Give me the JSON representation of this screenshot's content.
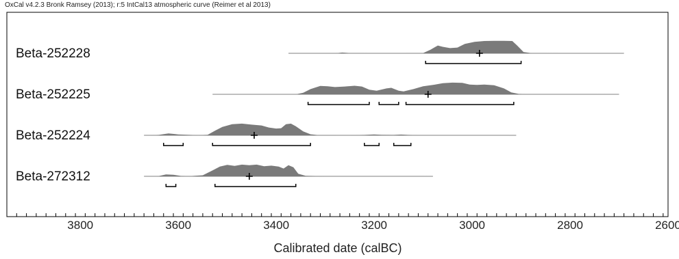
{
  "header": "OxCal v4.2.3 Bronk Ramsey (2013); r:5 IntCal13 atmospheric curve (Reimer et al 2013)",
  "chart_data": {
    "type": "area",
    "xlabel": "Calibrated date (calBC)",
    "xlim": [
      3950,
      2600
    ],
    "x_ticks": [
      3800,
      3600,
      3400,
      3200,
      3000,
      2800,
      2600
    ],
    "minor_tick_step": 20,
    "grid": false,
    "fill_color": "#7a7a7a",
    "series": [
      {
        "name": "Beta-252228",
        "range": [
          3375,
          2690
        ],
        "mean": 2985,
        "profile": [
          [
            3375,
            0
          ],
          [
            3280,
            0
          ],
          [
            3265,
            0.06
          ],
          [
            3250,
            0.02
          ],
          [
            3200,
            0.01
          ],
          [
            3150,
            0.01
          ],
          [
            3100,
            0.02
          ],
          [
            3085,
            0.28
          ],
          [
            3070,
            0.6
          ],
          [
            3060,
            0.5
          ],
          [
            3045,
            0.4
          ],
          [
            3030,
            0.44
          ],
          [
            3015,
            0.72
          ],
          [
            2995,
            0.88
          ],
          [
            2975,
            0.95
          ],
          [
            2955,
            0.96
          ],
          [
            2935,
            0.96
          ],
          [
            2918,
            0.95
          ],
          [
            2908,
            0.6
          ],
          [
            2895,
            0.1
          ],
          [
            2880,
            0.02
          ],
          [
            2800,
            0.01
          ],
          [
            2690,
            0
          ]
        ],
        "ranges_1sigma": [
          [
            3095,
            2900
          ]
        ]
      },
      {
        "name": "Beta-252225",
        "range": [
          3530,
          2700
        ],
        "mean": 3090,
        "profile": [
          [
            3530,
            0
          ],
          [
            3360,
            0
          ],
          [
            3345,
            0.12
          ],
          [
            3330,
            0.4
          ],
          [
            3310,
            0.65
          ],
          [
            3295,
            0.62
          ],
          [
            3280,
            0.56
          ],
          [
            3260,
            0.6
          ],
          [
            3240,
            0.66
          ],
          [
            3225,
            0.6
          ],
          [
            3210,
            0.35
          ],
          [
            3195,
            0.28
          ],
          [
            3175,
            0.45
          ],
          [
            3165,
            0.5
          ],
          [
            3150,
            0.28
          ],
          [
            3140,
            0.22
          ],
          [
            3120,
            0.4
          ],
          [
            3100,
            0.62
          ],
          [
            3080,
            0.72
          ],
          [
            3060,
            0.85
          ],
          [
            3040,
            0.9
          ],
          [
            3020,
            0.88
          ],
          [
            3005,
            0.75
          ],
          [
            2990,
            0.72
          ],
          [
            2975,
            0.75
          ],
          [
            2955,
            0.7
          ],
          [
            2935,
            0.45
          ],
          [
            2920,
            0.15
          ],
          [
            2905,
            0.03
          ],
          [
            2880,
            0.01
          ],
          [
            2700,
            0
          ]
        ],
        "ranges_1sigma": [
          [
            3335,
            3210
          ],
          [
            3190,
            3150
          ],
          [
            3135,
            2915
          ]
        ]
      },
      {
        "name": "Beta-252224",
        "range": [
          3670,
          2910
        ],
        "mean": 3445,
        "profile": [
          [
            3670,
            0
          ],
          [
            3640,
            0.03
          ],
          [
            3620,
            0.15
          ],
          [
            3600,
            0.07
          ],
          [
            3575,
            0.03
          ],
          [
            3560,
            0.01
          ],
          [
            3540,
            0.04
          ],
          [
            3525,
            0.35
          ],
          [
            3510,
            0.65
          ],
          [
            3490,
            0.85
          ],
          [
            3470,
            0.9
          ],
          [
            3450,
            0.82
          ],
          [
            3430,
            0.76
          ],
          [
            3415,
            0.6
          ],
          [
            3400,
            0.52
          ],
          [
            3390,
            0.55
          ],
          [
            3380,
            0.85
          ],
          [
            3370,
            0.9
          ],
          [
            3360,
            0.7
          ],
          [
            3345,
            0.3
          ],
          [
            3330,
            0.08
          ],
          [
            3315,
            0.02
          ],
          [
            3260,
            0.01
          ],
          [
            3220,
            0.03
          ],
          [
            3200,
            0.07
          ],
          [
            3185,
            0.04
          ],
          [
            3160,
            0.03
          ],
          [
            3145,
            0.06
          ],
          [
            3130,
            0.03
          ],
          [
            3100,
            0.01
          ],
          [
            3000,
            0.01
          ],
          [
            2910,
            0
          ]
        ],
        "ranges_1sigma": [
          [
            3630,
            3590
          ],
          [
            3530,
            3330
          ],
          [
            3220,
            3190
          ],
          [
            3160,
            3125
          ]
        ]
      },
      {
        "name": "Beta-272312",
        "range": [
          3670,
          3080
        ],
        "mean": 3455,
        "profile": [
          [
            3670,
            0
          ],
          [
            3640,
            0.02
          ],
          [
            3625,
            0.15
          ],
          [
            3610,
            0.12
          ],
          [
            3595,
            0.03
          ],
          [
            3575,
            0.02
          ],
          [
            3550,
            0.08
          ],
          [
            3530,
            0.45
          ],
          [
            3515,
            0.75
          ],
          [
            3500,
            0.88
          ],
          [
            3485,
            0.8
          ],
          [
            3470,
            0.9
          ],
          [
            3455,
            0.85
          ],
          [
            3440,
            0.9
          ],
          [
            3425,
            0.78
          ],
          [
            3410,
            0.82
          ],
          [
            3395,
            0.75
          ],
          [
            3385,
            0.6
          ],
          [
            3375,
            0.85
          ],
          [
            3365,
            0.7
          ],
          [
            3355,
            0.2
          ],
          [
            3340,
            0.04
          ],
          [
            3300,
            0.01
          ],
          [
            3200,
            0.01
          ],
          [
            3080,
            0
          ]
        ],
        "ranges_1sigma": [
          [
            3625,
            3605
          ],
          [
            3525,
            3360
          ]
        ]
      }
    ]
  }
}
